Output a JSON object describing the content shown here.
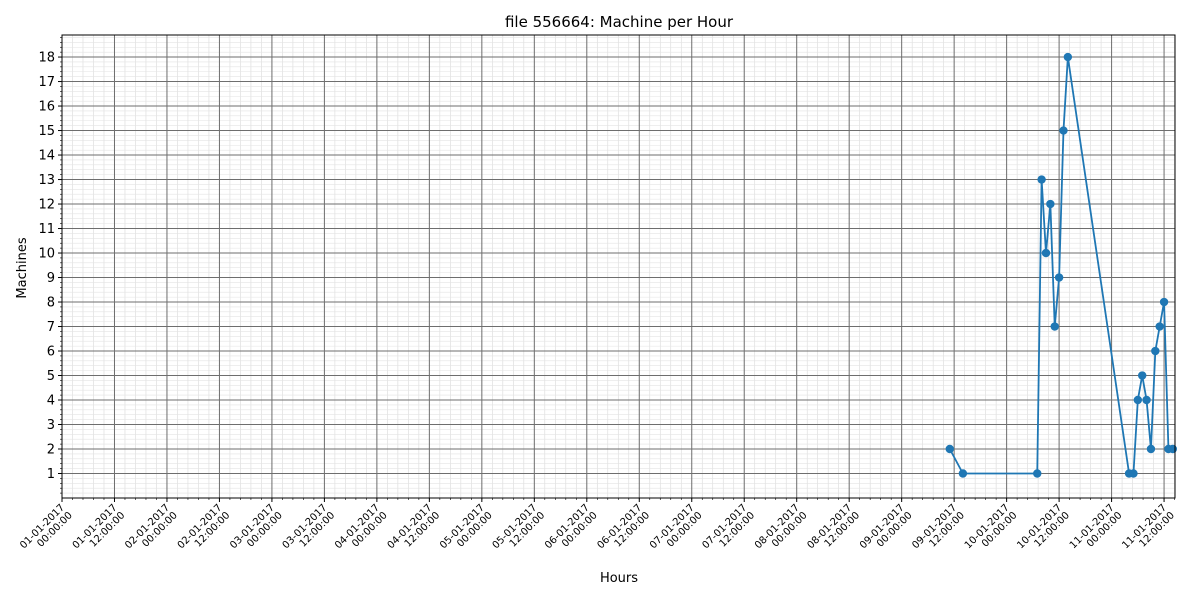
{
  "chart_data": {
    "type": "line",
    "title": "file 556664: Machine per Hour",
    "xlabel": "Hours",
    "ylabel": "Machines",
    "x_unit": "hours",
    "xlim": [
      "01-01-2017 00:00:00",
      "11-01-2017 14:30:00"
    ],
    "ylim": [
      0,
      18.9
    ],
    "y_ticks": [
      1,
      2,
      3,
      4,
      5,
      6,
      7,
      8,
      9,
      10,
      11,
      12,
      13,
      14,
      15,
      16,
      17,
      18
    ],
    "x_ticks": [
      [
        "01-01-2017",
        "00:00:00"
      ],
      [
        "01-01-2017",
        "12:00:00"
      ],
      [
        "02-01-2017",
        "00:00:00"
      ],
      [
        "02-01-2017",
        "12:00:00"
      ],
      [
        "03-01-2017",
        "00:00:00"
      ],
      [
        "03-01-2017",
        "12:00:00"
      ],
      [
        "04-01-2017",
        "00:00:00"
      ],
      [
        "04-01-2017",
        "12:00:00"
      ],
      [
        "05-01-2017",
        "00:00:00"
      ],
      [
        "05-01-2017",
        "12:00:00"
      ],
      [
        "06-01-2017",
        "00:00:00"
      ],
      [
        "06-01-2017",
        "12:00:00"
      ],
      [
        "07-01-2017",
        "00:00:00"
      ],
      [
        "07-01-2017",
        "12:00:00"
      ],
      [
        "08-01-2017",
        "00:00:00"
      ],
      [
        "08-01-2017",
        "12:00:00"
      ],
      [
        "09-01-2017",
        "00:00:00"
      ],
      [
        "09-01-2017",
        "12:00:00"
      ],
      [
        "10-01-2017",
        "00:00:00"
      ],
      [
        "10-01-2017",
        "12:00:00"
      ],
      [
        "11-01-2017",
        "00:00:00"
      ],
      [
        "11-01-2017",
        "12:00:00"
      ]
    ],
    "grid": true,
    "minor_grid": true,
    "series": [
      {
        "color": "#1f77b4",
        "points": [
          {
            "x": "09-01-2017 11:00:00",
            "y": 2
          },
          {
            "x": "09-01-2017 14:00:00",
            "y": 1
          },
          {
            "x": "10-01-2017 07:00:00",
            "y": 1
          },
          {
            "x": "10-01-2017 08:00:00",
            "y": 13
          },
          {
            "x": "10-01-2017 09:00:00",
            "y": 10
          },
          {
            "x": "10-01-2017 10:00:00",
            "y": 12
          },
          {
            "x": "10-01-2017 11:00:00",
            "y": 7
          },
          {
            "x": "10-01-2017 12:00:00",
            "y": 9
          },
          {
            "x": "10-01-2017 13:00:00",
            "y": 15
          },
          {
            "x": "10-01-2017 14:00:00",
            "y": 18
          },
          {
            "x": "11-01-2017 04:00:00",
            "y": 1
          },
          {
            "x": "11-01-2017 05:00:00",
            "y": 1
          },
          {
            "x": "11-01-2017 06:00:00",
            "y": 4
          },
          {
            "x": "11-01-2017 07:00:00",
            "y": 5
          },
          {
            "x": "11-01-2017 08:00:00",
            "y": 4
          },
          {
            "x": "11-01-2017 09:00:00",
            "y": 2
          },
          {
            "x": "11-01-2017 10:00:00",
            "y": 6
          },
          {
            "x": "11-01-2017 11:00:00",
            "y": 7
          },
          {
            "x": "11-01-2017 12:00:00",
            "y": 8
          },
          {
            "x": "11-01-2017 13:00:00",
            "y": 2
          },
          {
            "x": "11-01-2017 14:00:00",
            "y": 2
          }
        ]
      }
    ]
  }
}
